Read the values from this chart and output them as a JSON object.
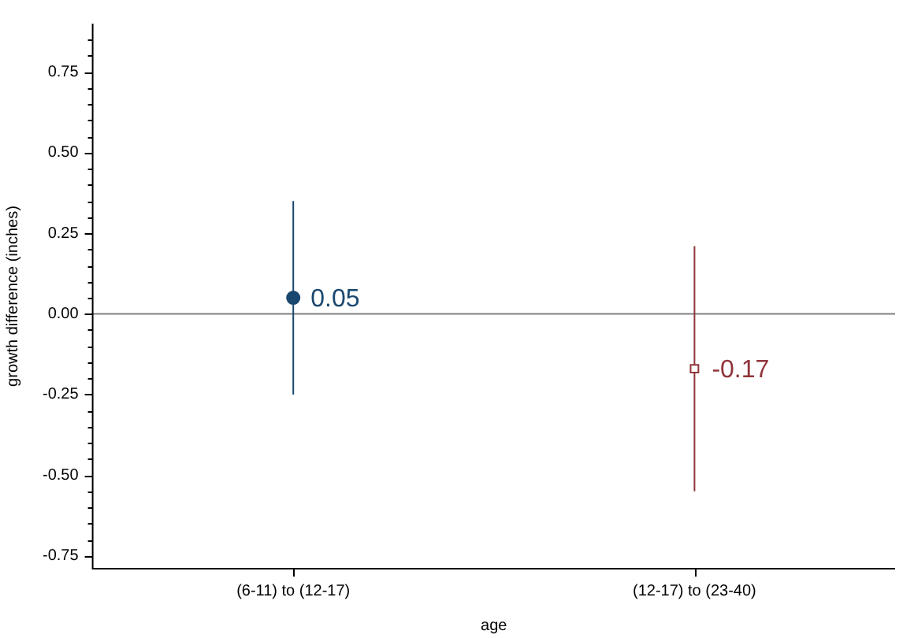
{
  "chart_data": {
    "type": "scatter",
    "xlabel": "age",
    "ylabel": "growth difference (inches)",
    "categories": [
      "(6-11) to (12-17)",
      "(12-17) to (23-40)"
    ],
    "series": [
      {
        "color": "#1a476f",
        "values": [
          0.05,
          null
        ],
        "errors": [
          [
            -0.25,
            0.35
          ],
          null
        ],
        "marker": "circle"
      },
      {
        "color": "#90353b",
        "values": [
          null,
          -0.17
        ],
        "errors": [
          null,
          [
            -0.55,
            0.21
          ]
        ],
        "marker": "square"
      }
    ],
    "ylim": [
      -0.79,
      0.9
    ],
    "yticks": [
      {
        "value": -0.75,
        "label": "-0.75"
      },
      {
        "value": -0.7,
        "label": null
      },
      {
        "value": -0.65,
        "label": null
      },
      {
        "value": -0.6,
        "label": null
      },
      {
        "value": -0.55,
        "label": null
      },
      {
        "value": -0.5,
        "label": "-0.50"
      },
      {
        "value": -0.45,
        "label": null
      },
      {
        "value": -0.4,
        "label": null
      },
      {
        "value": -0.35,
        "label": null
      },
      {
        "value": -0.3,
        "label": null
      },
      {
        "value": -0.25,
        "label": "-0.25"
      },
      {
        "value": -0.2,
        "label": null
      },
      {
        "value": -0.15,
        "label": null
      },
      {
        "value": -0.1,
        "label": null
      },
      {
        "value": -0.05,
        "label": null
      },
      {
        "value": 0,
        "label": "0.00"
      },
      {
        "value": 0.05,
        "label": null
      },
      {
        "value": 0.1,
        "label": null
      },
      {
        "value": 0.15,
        "label": null
      },
      {
        "value": 0.2,
        "label": null
      },
      {
        "value": 0.25,
        "label": "0.25"
      },
      {
        "value": 0.3,
        "label": null
      },
      {
        "value": 0.35,
        "label": null
      },
      {
        "value": 0.4,
        "label": null
      },
      {
        "value": 0.45,
        "label": null
      },
      {
        "value": 0.5,
        "label": "0.50"
      },
      {
        "value": 0.55,
        "label": null
      },
      {
        "value": 0.6,
        "label": null
      },
      {
        "value": 0.65,
        "label": null
      },
      {
        "value": 0.7,
        "label": null
      },
      {
        "value": 0.75,
        "label": "0.75"
      },
      {
        "value": 0.8,
        "label": null
      },
      {
        "value": 0.85,
        "label": null
      }
    ],
    "ref_lines": [
      {
        "axis": "y",
        "value": 0,
        "color": "#808080"
      }
    ],
    "data_labels": true,
    "grid": false,
    "legend": false
  }
}
